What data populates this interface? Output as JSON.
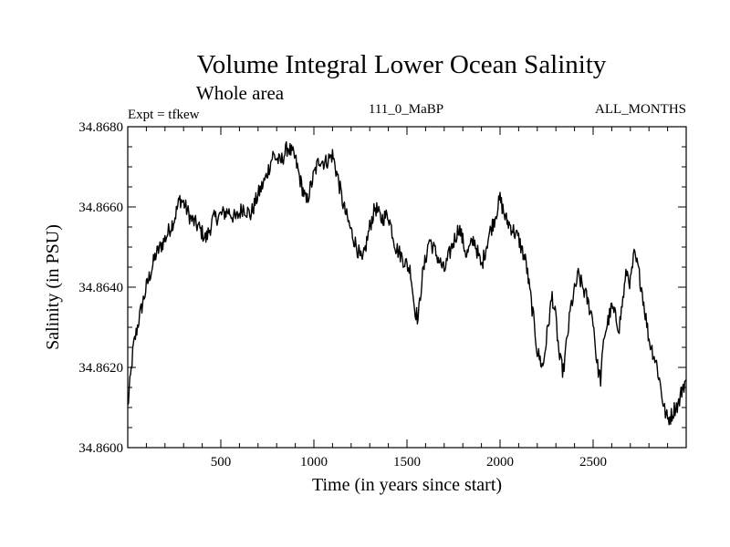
{
  "chart_data": {
    "type": "line",
    "title": "Volume Integral Lower Ocean Salinity",
    "subtitle": "Whole area",
    "annotations": {
      "experiment": "Expt = tfkew",
      "center": "111_0_MaBP",
      "right": "ALL_MONTHS"
    },
    "xlabel": "Time (in years since start)",
    "ylabel": "Salinity (in PSU)",
    "xlim": [
      0,
      3000
    ],
    "ylim": [
      34.86,
      34.868
    ],
    "x_ticks": [
      500,
      1000,
      1500,
      2000,
      2500
    ],
    "x_tick_labels": [
      "500",
      "1000",
      "1500",
      "2000",
      "2500"
    ],
    "y_ticks": [
      34.86,
      34.862,
      34.864,
      34.866,
      34.868
    ],
    "y_tick_labels": [
      "34.8600",
      "34.8620",
      "34.8640",
      "34.8660",
      "34.8680"
    ],
    "grid": false,
    "legend": "none",
    "line_color": "#000000",
    "series": [
      {
        "x": [
          0,
          30,
          60,
          100,
          150,
          200,
          250,
          280,
          300,
          340,
          380,
          420,
          460,
          500,
          540,
          580,
          620,
          660,
          700,
          740,
          780,
          820,
          860,
          900,
          930,
          960,
          1000,
          1030,
          1060,
          1100,
          1130,
          1160,
          1200,
          1230,
          1260,
          1300,
          1330,
          1360,
          1400,
          1440,
          1480,
          1520,
          1540,
          1560,
          1580,
          1620,
          1660,
          1700,
          1740,
          1780,
          1820,
          1860,
          1900,
          1940,
          1970,
          2000,
          2030,
          2060,
          2100,
          2140,
          2180,
          2200,
          2230,
          2260,
          2280,
          2300,
          2320,
          2340,
          2360,
          2380,
          2420,
          2460,
          2500,
          2520,
          2540,
          2560,
          2600,
          2640,
          2680,
          2700,
          2720,
          2740,
          2760,
          2800,
          2840,
          2860,
          2880,
          2900,
          2920,
          2940,
          2960,
          2980,
          3000
        ],
        "y": [
          34.861,
          34.8625,
          34.8632,
          34.864,
          34.8648,
          34.8652,
          34.8657,
          34.8662,
          34.8661,
          34.8657,
          34.8655,
          34.8652,
          34.8657,
          34.8658,
          34.8659,
          34.8657,
          34.866,
          34.8658,
          34.8663,
          34.8667,
          34.8673,
          34.8671,
          34.8675,
          34.8672,
          34.8666,
          34.8661,
          34.8668,
          34.8672,
          34.8671,
          34.8673,
          34.8667,
          34.866,
          34.8654,
          34.865,
          34.8646,
          34.8655,
          34.866,
          34.8657,
          34.8658,
          34.865,
          34.8647,
          34.8644,
          34.8635,
          34.8632,
          34.8642,
          34.8652,
          34.8648,
          34.8644,
          34.865,
          34.8655,
          34.8648,
          34.8652,
          34.8645,
          34.8653,
          34.8657,
          34.8662,
          34.8657,
          34.8655,
          34.8652,
          34.8646,
          34.8632,
          34.8624,
          34.862,
          34.8631,
          34.8638,
          34.8632,
          34.8622,
          34.8619,
          34.8627,
          34.8635,
          34.8643,
          34.8638,
          34.8632,
          34.8621,
          34.8617,
          34.8628,
          34.8635,
          34.863,
          34.8644,
          34.8641,
          34.8648,
          34.8645,
          34.864,
          34.8627,
          34.8621,
          34.8616,
          34.861,
          34.8607,
          34.8608,
          34.861,
          34.8611,
          34.8615,
          34.8617
        ]
      }
    ]
  }
}
